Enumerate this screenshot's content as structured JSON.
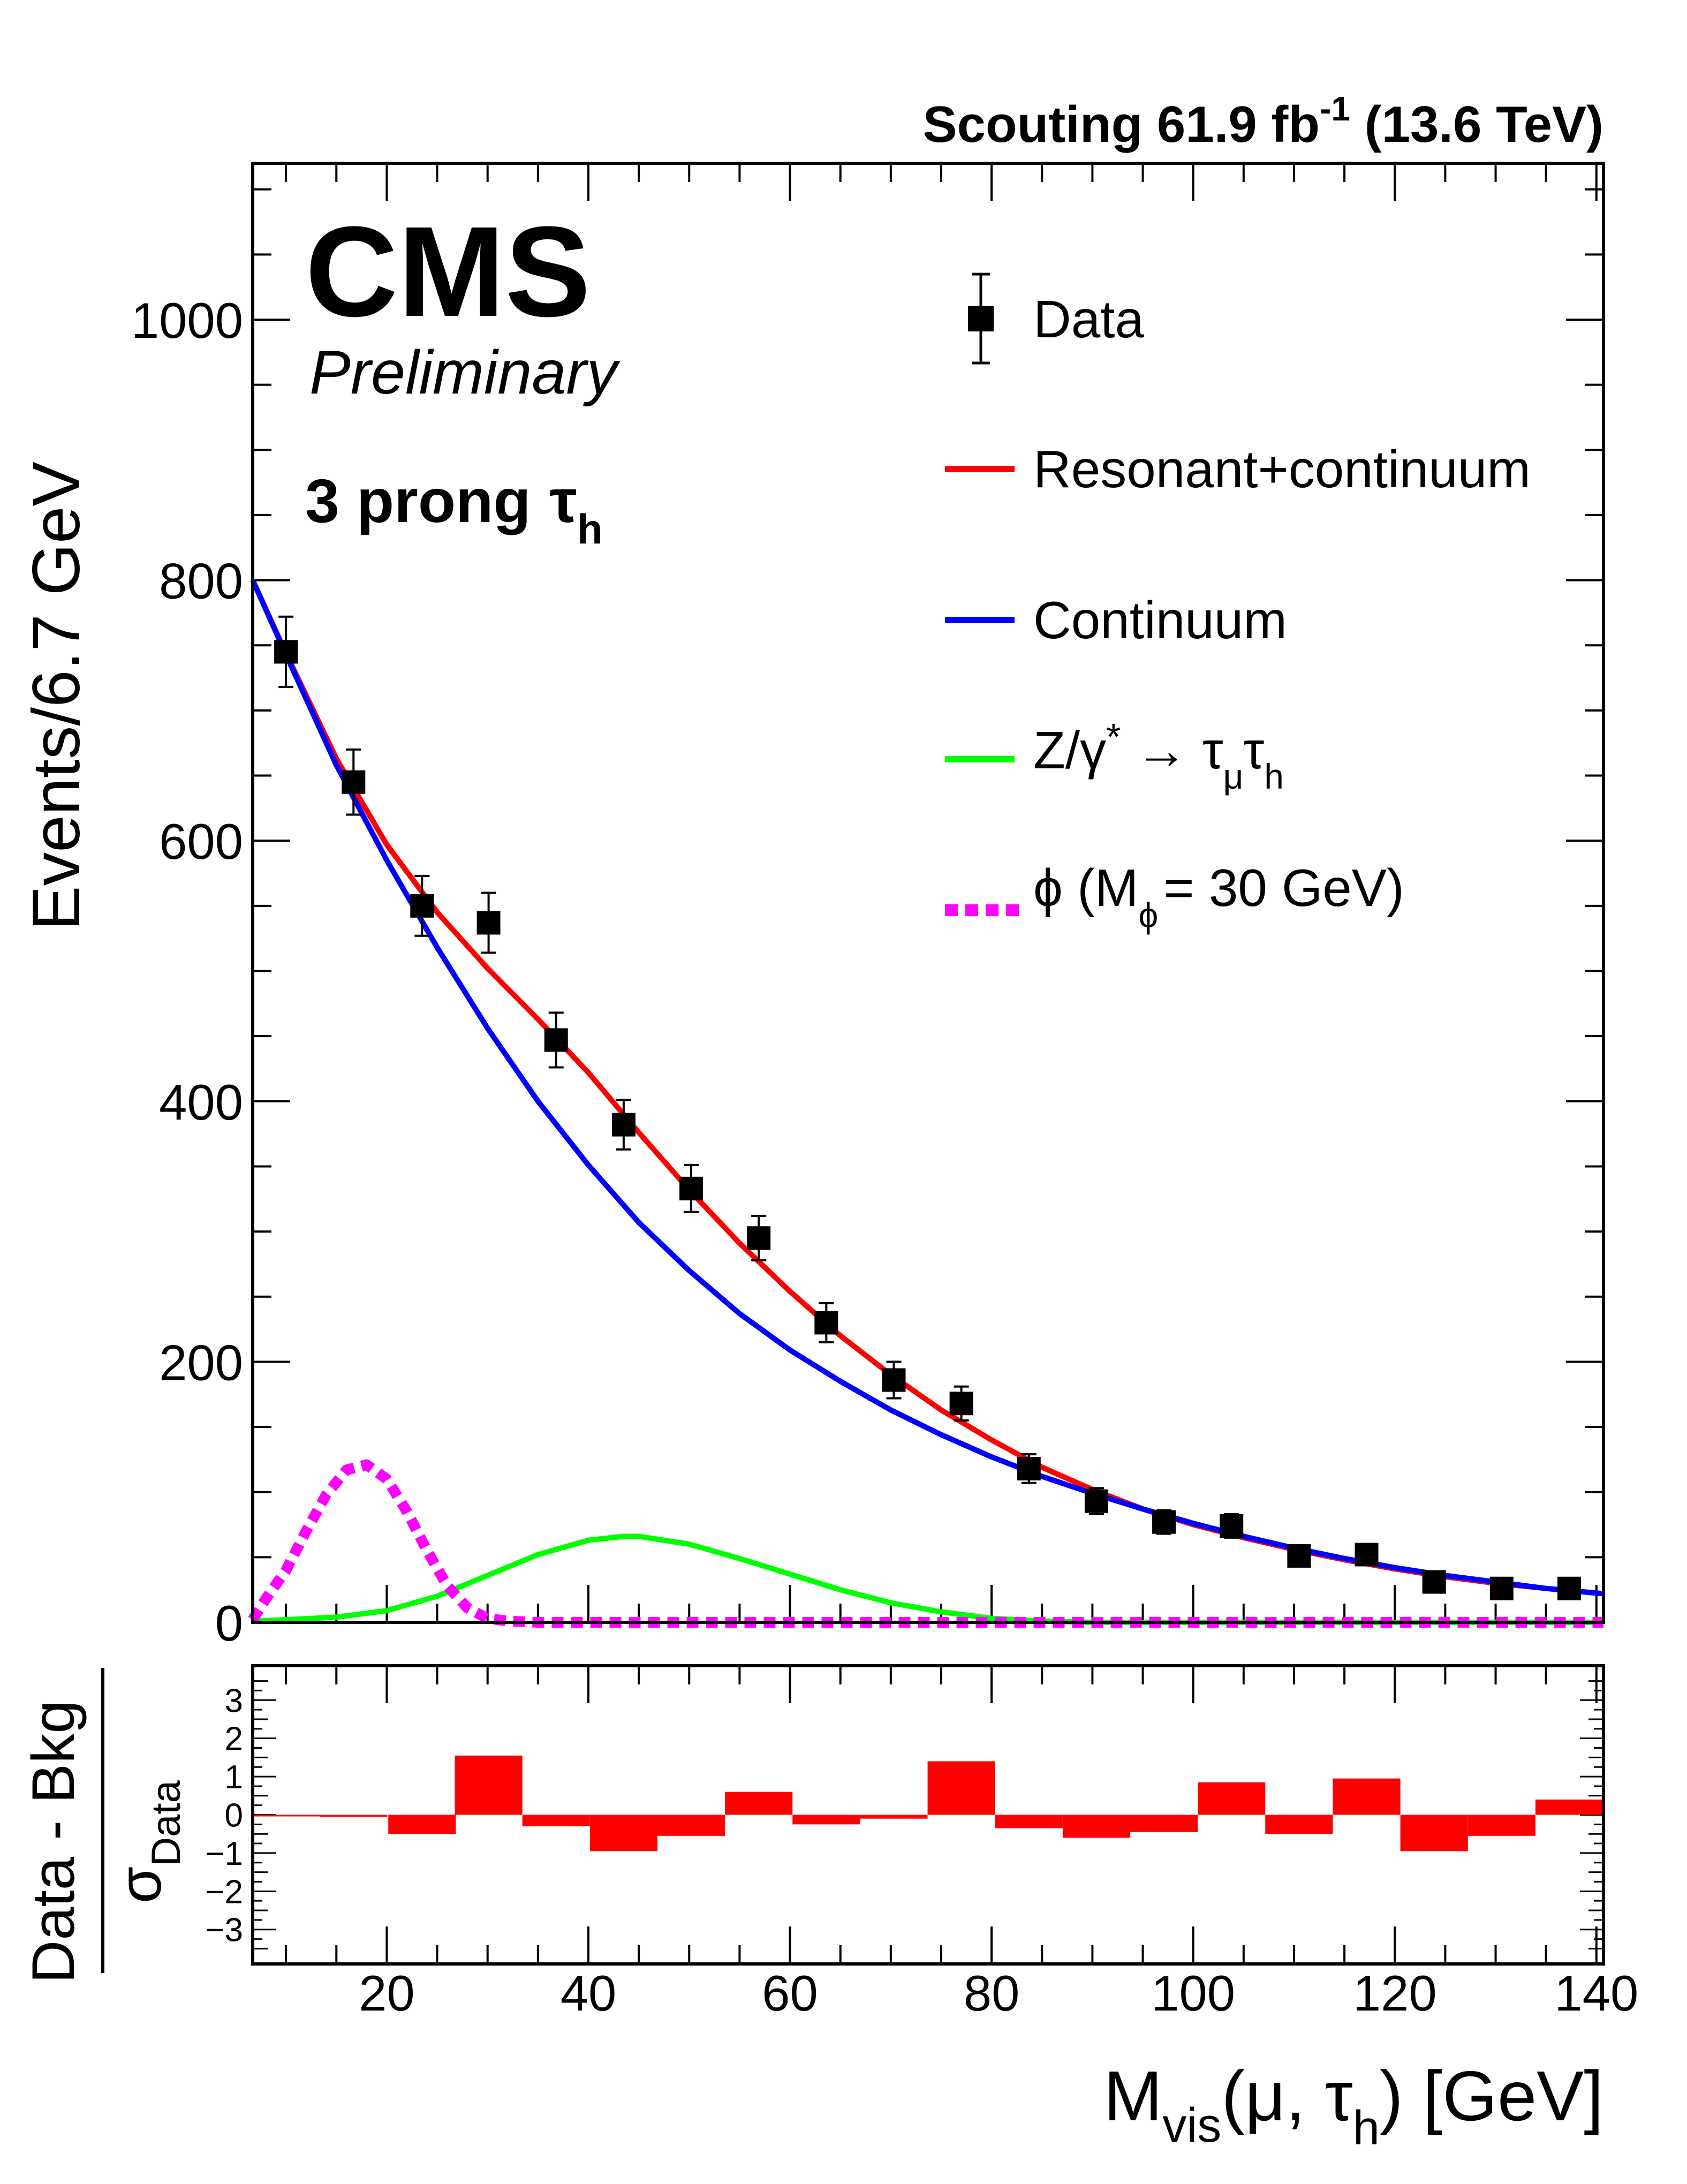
{
  "chart_data": [
    {
      "panel": "main",
      "type": "line",
      "header": {
        "experiment": "CMS",
        "status": "Preliminary",
        "lumi_text": "Scouting 61.9 fb",
        "lumi_exp": "-1",
        "energy_text": "(13.6 TeV)"
      },
      "category": {
        "text": "3 prong",
        "tau": "τ",
        "sub": "h"
      },
      "ylabel": "Events/6.7 GeV",
      "xlim": [
        6.7,
        140.7
      ],
      "ylim": [
        0,
        1120
      ],
      "yticks": [
        0,
        200,
        400,
        600,
        800,
        1000
      ],
      "yticklabels": [
        "0",
        "200",
        "400",
        "600",
        "800",
        "1000"
      ],
      "data_points": {
        "name": "Data",
        "x": [
          10,
          16.7,
          23.5,
          30.1,
          36.8,
          43.5,
          50.2,
          56.9,
          63.6,
          70.3,
          77.0,
          83.7,
          90.4,
          97.1,
          103.8,
          110.5,
          117.2,
          123.9,
          130.6,
          137.3
        ],
        "y": [
          745,
          645,
          550,
          537,
          447,
          382,
          333,
          295,
          230,
          186,
          168,
          118,
          93,
          77,
          74,
          51,
          52,
          31,
          26,
          26
        ],
        "err": [
          27,
          25,
          23,
          23,
          21,
          19,
          18,
          17,
          15,
          14,
          13,
          11,
          10,
          9,
          9,
          7,
          7,
          6,
          5,
          5
        ]
      },
      "series": [
        {
          "name": "Resonant+continuum",
          "color": "#ff0000",
          "style": "solid",
          "x": [
            6.7,
            10,
            15,
            20,
            25,
            30,
            35,
            40,
            45,
            50,
            55,
            60,
            65,
            70,
            75,
            80,
            85,
            90,
            95,
            100,
            105,
            110,
            115,
            120,
            125,
            130,
            135,
            140.7
          ],
          "y": [
            800,
            744,
            663,
            597,
            545,
            502,
            463,
            422,
            376,
            332,
            291,
            254,
            220,
            190,
            163,
            140,
            119,
            102,
            87,
            75,
            65,
            56,
            48,
            41,
            35,
            30,
            26,
            22
          ]
        },
        {
          "name": "Continuum",
          "color": "#0000ff",
          "style": "solid",
          "x": [
            6.7,
            10,
            15,
            20,
            25,
            30,
            35,
            40,
            45,
            50,
            55,
            60,
            65,
            70,
            75,
            80,
            85,
            90,
            95,
            100,
            105,
            110,
            115,
            120,
            125,
            130,
            135,
            140.7
          ],
          "y": [
            800,
            743,
            658,
            585,
            518,
            456,
            400,
            351,
            307,
            270,
            237,
            209,
            185,
            163,
            144,
            127,
            112,
            99,
            87,
            76,
            66,
            57,
            49,
            42,
            36,
            31,
            26,
            22
          ]
        },
        {
          "name": "Z/γ* → τμτh",
          "color": "#00ff00",
          "style": "solid",
          "x": [
            6.7,
            10,
            15,
            20,
            25,
            30,
            35,
            40,
            43.5,
            45,
            50,
            55,
            60,
            65,
            70,
            75,
            80,
            85,
            90,
            95,
            100,
            110,
            120,
            130,
            140.7
          ],
          "y": [
            1,
            2,
            4,
            9,
            20,
            36,
            52,
            63,
            66,
            66,
            60,
            49,
            37,
            25,
            15,
            8,
            3,
            1,
            0,
            0,
            0,
            0,
            0,
            0,
            0
          ]
        },
        {
          "name": "ϕ (Mϕ = 30 GeV)",
          "color": "#ff00ff",
          "style": "dashed",
          "x": [
            6.7,
            8,
            10,
            12,
            14,
            16,
            18,
            20,
            22,
            24,
            26,
            28,
            30,
            32,
            35,
            40,
            60,
            80,
            100,
            120,
            140.7
          ],
          "y": [
            2,
            18,
            40,
            70,
            98,
            117,
            121,
            110,
            85,
            55,
            28,
            11,
            3,
            1,
            0,
            0,
            0,
            0,
            0,
            0,
            0
          ]
        }
      ],
      "legend": {
        "placement": "top-right",
        "entries": [
          {
            "label": "Data"
          },
          {
            "label": "Resonant+continuum"
          },
          {
            "label": "Continuum"
          },
          {
            "label_main": "Z/γ",
            "label_star": "*",
            "label_arrow": " → ",
            "label_tau1": "τ",
            "label_sub1": "μ",
            "label_tau2": "τ",
            "label_sub2": "h"
          },
          {
            "label_main": "ϕ (M",
            "label_sub": "ϕ",
            "label_rest": "= 30 GeV)"
          }
        ]
      }
    },
    {
      "panel": "ratio",
      "type": "bar",
      "ylabel_num": "Data - Bkg",
      "ylabel_den": "σ",
      "ylabel_den_sub": "Data",
      "color": "#ff0000",
      "xlim": [
        6.7,
        140.7
      ],
      "ylim": [
        -3.9,
        3.9
      ],
      "yticks": [
        -3,
        -2,
        -1,
        0,
        1,
        2,
        3
      ],
      "yticklabels": [
        "−3",
        "−2",
        "−1",
        "0",
        "1",
        "2",
        "3"
      ],
      "bin_width": 6.7,
      "bin_centers": [
        10,
        16.7,
        23.5,
        30.1,
        36.8,
        43.5,
        50.2,
        56.9,
        63.6,
        70.3,
        77.0,
        83.7,
        90.4,
        97.1,
        103.8,
        110.5,
        117.2,
        123.9,
        130.6,
        137.3
      ],
      "values": [
        0.0,
        -0.05,
        -0.5,
        1.55,
        -0.3,
        -0.95,
        -0.55,
        0.6,
        -0.25,
        -0.1,
        1.4,
        -0.35,
        -0.6,
        -0.45,
        0.85,
        -0.5,
        0.95,
        -0.95,
        -0.55,
        0.4
      ],
      "xlabel_main": "M",
      "xlabel_sub": "vis",
      "xlabel_mid": "(μ, τ",
      "xlabel_sub2": "h",
      "xlabel_end": ") [GeV]",
      "xticks": [
        20,
        40,
        60,
        80,
        100,
        120,
        140
      ],
      "xticklabels": [
        "20",
        "40",
        "60",
        "80",
        "100",
        "120",
        "140"
      ]
    }
  ]
}
